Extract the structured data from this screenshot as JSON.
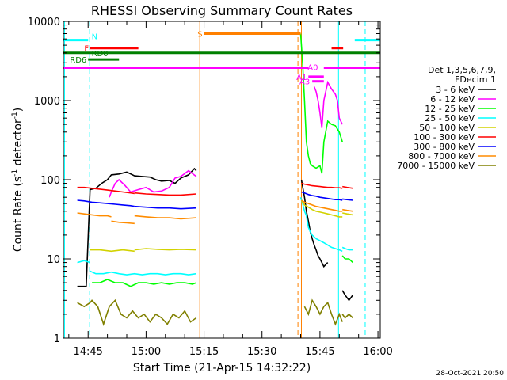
{
  "chart_data": {
    "type": "line",
    "title": "RHESSI Observing Summary Count Rates",
    "xlabel": "Start Time (21-Apr-15 14:32:22)",
    "ylabel_main": "Count Rate (s",
    "ylabel_sup1": "-1",
    "ylabel_mid": " detector",
    "ylabel_sup2": "-1",
    "ylabel_end": ")",
    "y_scale": "log",
    "ylim": [
      1,
      10000
    ],
    "xlim_minutes": [
      -6.4,
      75.6
    ],
    "x_ticks": [
      {
        "label": "14:45",
        "minute": 0
      },
      {
        "label": "15:00",
        "minute": 15
      },
      {
        "label": "15:15",
        "minute": 30
      },
      {
        "label": "15:30",
        "minute": 45
      },
      {
        "label": "15:45",
        "minute": 60
      },
      {
        "label": "16:00",
        "minute": 75
      }
    ],
    "y_ticks": [
      {
        "label": "1",
        "value": 1
      },
      {
        "label": "10",
        "value": 10
      },
      {
        "label": "100",
        "value": 100
      },
      {
        "label": "1000",
        "value": 1000
      },
      {
        "label": "10000",
        "value": 10000
      }
    ],
    "legend_header": [
      "Det 1,3,5,6,7,9,",
      "FDecim 1"
    ],
    "series": [
      {
        "name": "3 - 6 keV",
        "color": "#000000",
        "segments": [
          {
            "x": [
              -2.8,
              -2.0,
              -0.5,
              0.5,
              2.0,
              3.5,
              5.0,
              6.0,
              8.0,
              10.0,
              12.0,
              14.0,
              16.0,
              17.5,
              19.0,
              21.0,
              22.5,
              24.0,
              26.0,
              27.5,
              28.0
            ],
            "y": [
              4.5,
              4.5,
              4.5,
              75,
              78,
              90,
              100,
              115,
              118,
              125,
              112,
              110,
              108,
              100,
              96,
              98,
              90,
              105,
              115,
              138,
              130
            ]
          },
          {
            "x": [
              55.2,
              56.0,
              56.5,
              57.0,
              57.5,
              58.0,
              58.5,
              59.0,
              59.5,
              60.0,
              60.5,
              61.0,
              61.5,
              62.0
            ],
            "y": [
              100,
              60,
              40,
              30,
              22,
              18,
              15,
              13,
              11,
              10,
              9,
              8,
              8.5,
              9
            ]
          },
          {
            "x": [
              65.8,
              66.5,
              67.5,
              68.5
            ],
            "y": [
              4,
              3.5,
              3,
              3.5
            ]
          }
        ]
      },
      {
        "name": "6 - 12 keV",
        "color": "#ff00ff",
        "segments": [
          {
            "x": [
              5.5,
              6.0,
              7.0,
              8.0,
              9.5,
              11.0,
              13.0,
              15.0,
              17.0,
              19.0,
              21.0,
              22.5,
              24.0,
              26.0,
              28.0
            ],
            "y": [
              60,
              70,
              90,
              100,
              85,
              70,
              75,
              80,
              70,
              72,
              80,
              105,
              110,
              130,
              110
            ]
          },
          {
            "x": [
              58.5,
              59.0,
              59.5,
              60.0,
              60.5,
              61.0,
              62.0,
              63.0,
              64.0,
              64.5,
              65.0,
              65.8
            ],
            "y": [
              1500,
              1300,
              1000,
              700,
              450,
              1000,
              1700,
              1400,
              1200,
              1000,
              600,
              500
            ]
          }
        ]
      },
      {
        "name": "12 - 25 keV",
        "color": "#00ff00",
        "segments": [
          {
            "x": [
              1.0,
              3.0,
              5.0,
              7.0,
              9.0,
              11.0,
              13.0,
              15.0,
              17.0,
              19.0,
              21.0,
              23.0,
              25.0,
              27.0,
              28.0
            ],
            "y": [
              5,
              5,
              5.5,
              5,
              5,
              4.5,
              5,
              5,
              4.8,
              5,
              4.8,
              5,
              5,
              4.8,
              5
            ]
          },
          {
            "x": [
              55.0,
              55.5,
              56.0,
              56.5,
              57.0,
              57.5,
              58.0,
              59.0,
              60.0,
              60.5,
              61.0,
              62.0,
              63.0,
              64.0,
              65.0,
              65.8
            ],
            "y": [
              7000,
              3000,
              1000,
              300,
              200,
              160,
              150,
              140,
              150,
              120,
              300,
              550,
              500,
              480,
              400,
              300
            ]
          },
          {
            "x": [
              65.8,
              66.5,
              67.5,
              68.5
            ],
            "y": [
              11,
              10,
              10,
              9
            ]
          }
        ]
      },
      {
        "name": "25 - 50 keV",
        "color": "#00ffff",
        "segments": [
          {
            "x": [
              -2.8,
              -1.0,
              0.5
            ],
            "y": [
              9,
              9.5,
              9
            ]
          },
          {
            "x": [
              0.5,
              2.0,
              4.0,
              6.0,
              8.0,
              10.0,
              12.0,
              14.0,
              16.0,
              18.0,
              20.0,
              22.0,
              24.0,
              26.0,
              28.0
            ],
            "y": [
              7,
              6.5,
              6.5,
              6.8,
              6.5,
              6.3,
              6.5,
              6.3,
              6.5,
              6.5,
              6.3,
              6.5,
              6.5,
              6.3,
              6.5
            ]
          },
          {
            "x": [
              55.0,
              55.5,
              56.0,
              56.5,
              57.0,
              57.5,
              58.0,
              59.0,
              60.0,
              61.0,
              62.0,
              63.0,
              64.0,
              65.0,
              65.8
            ],
            "y": [
              60,
              50,
              40,
              35,
              25,
              22,
              20,
              18,
              17,
              16,
              15,
              14,
              13.5,
              13,
              12.5
            ]
          },
          {
            "x": [
              65.8,
              66.5,
              67.5,
              68.5
            ],
            "y": [
              14,
              13.5,
              13,
              13
            ]
          }
        ]
      },
      {
        "name": "50 - 100 keV",
        "color": "#d2d200",
        "segments": [
          {
            "x": [
              0.5,
              3.0,
              6.0,
              9.0,
              12.0
            ],
            "y": [
              13,
              13,
              12.5,
              13,
              12.5
            ]
          },
          {
            "x": [
              12.0,
              15.0,
              18.0,
              21.0,
              24.0,
              28.0
            ],
            "y": [
              13,
              13.5,
              13.2,
              13,
              13.2,
              13
            ]
          },
          {
            "x": [
              55.2,
              56.0,
              57.0,
              58.0,
              59.0,
              60.0,
              61.0,
              62.0,
              63.0,
              64.0,
              65.0,
              65.8
            ],
            "y": [
              55,
              48,
              45,
              42,
              40,
              39,
              38,
              37,
              36,
              35,
              34,
              34
            ]
          },
          {
            "x": [
              65.8,
              67.0,
              68.5
            ],
            "y": [
              38,
              37,
              36
            ]
          }
        ]
      },
      {
        "name": "100 - 300 keV",
        "color": "#ff0000",
        "segments": [
          {
            "x": [
              -2.8,
              -1.0,
              1.0,
              3.0,
              5.0,
              7.0,
              9.0,
              11.0,
              12.0
            ],
            "y": [
              80,
              80,
              78,
              76,
              74,
              72,
              70,
              68,
              67
            ]
          },
          {
            "x": [
              12.0,
              15.0,
              18.0,
              21.0,
              24.0,
              28.0
            ],
            "y": [
              68,
              66,
              65,
              64,
              64,
              66
            ]
          },
          {
            "x": [
              55.2,
              56.0,
              57.0,
              58.0,
              59.0,
              60.0,
              61.0,
              62.0,
              63.0,
              64.0,
              65.0,
              65.8
            ],
            "y": [
              90,
              88,
              86,
              84,
              83,
              82,
              81,
              80,
              80,
              79,
              79,
              78
            ]
          },
          {
            "x": [
              65.8,
              67.0,
              68.5
            ],
            "y": [
              82,
              80,
              78
            ]
          }
        ]
      },
      {
        "name": "300 - 800 keV",
        "color": "#0000ff",
        "segments": [
          {
            "x": [
              -2.8,
              -1.0,
              1.0,
              3.0,
              5.0,
              7.0,
              9.0,
              11.0,
              12.0
            ],
            "y": [
              55,
              54,
              52,
              51,
              50,
              49,
              48,
              47,
              46
            ]
          },
          {
            "x": [
              12.0,
              15.0,
              18.0,
              21.0,
              24.0,
              28.0
            ],
            "y": [
              46,
              45,
              44,
              44,
              43,
              44
            ]
          },
          {
            "x": [
              55.2,
              56.0,
              57.0,
              58.0,
              59.0,
              60.0,
              61.0,
              62.0,
              63.0,
              64.0,
              65.0,
              65.8
            ],
            "y": [
              70,
              68,
              65,
              63,
              62,
              60,
              59,
              58,
              57,
              56,
              56,
              55
            ]
          },
          {
            "x": [
              65.8,
              67.0,
              68.5
            ],
            "y": [
              57,
              56,
              55
            ]
          }
        ]
      },
      {
        "name": "800 - 7000 keV",
        "color": "#ff8c00",
        "segments": [
          {
            "x": [
              -2.8,
              -1.0,
              1.0,
              3.0,
              5.0,
              6.0
            ],
            "y": [
              38,
              37,
              36,
              35,
              35,
              34
            ]
          },
          {
            "x": [
              6.0,
              8.0,
              10.0,
              12.0
            ],
            "y": [
              30,
              29,
              28.5,
              28
            ]
          },
          {
            "x": [
              12.0,
              15.0,
              18.0,
              21.0,
              24.0,
              28.0
            ],
            "y": [
              35,
              34,
              33,
              33,
              32,
              33
            ]
          },
          {
            "x": [
              55.2,
              56.0,
              57.0,
              58.0,
              59.0,
              60.0,
              61.0,
              62.0,
              63.0,
              64.0,
              65.0,
              65.8
            ],
            "y": [
              55,
              52,
              50,
              48,
              46,
              45,
              44,
              43,
              42,
              41,
              40,
              40
            ]
          },
          {
            "x": [
              65.8,
              67.0,
              68.5
            ],
            "y": [
              42,
              41,
              40
            ]
          }
        ]
      },
      {
        "name": "7000 - 15000 keV",
        "color": "#808000",
        "segments": [
          {
            "x": [
              -2.8,
              -1.0,
              0.5,
              1.0,
              2.5,
              4.0,
              5.5,
              7.0,
              8.5,
              10.0,
              11.5,
              13.0,
              14.5,
              16.0,
              17.5,
              19.0,
              20.5,
              22.0,
              23.5,
              25.0,
              26.5,
              28.0
            ],
            "y": [
              2.8,
              2.5,
              2.8,
              3.0,
              2.5,
              1.5,
              2.5,
              3.0,
              2.0,
              1.8,
              2.2,
              1.8,
              2.0,
              1.6,
              2.0,
              1.8,
              1.5,
              2.0,
              1.8,
              2.2,
              1.6,
              1.8
            ]
          },
          {
            "x": [
              56.0,
              57.0,
              58.0,
              59.0,
              60.0,
              61.0,
              62.0,
              63.0,
              64.0,
              65.0,
              65.8
            ],
            "y": [
              2.5,
              2.0,
              3.0,
              2.5,
              2.0,
              2.5,
              2.8,
              2.0,
              1.5,
              2.0,
              1.6
            ]
          },
          {
            "x": [
              65.8,
              66.5,
              67.5,
              68.5
            ],
            "y": [
              2.0,
              1.8,
              2.0,
              1.8
            ]
          }
        ]
      }
    ],
    "flag_bars": [
      {
        "label": "N",
        "color": "#00ffff",
        "segments": [
          [
            -6.4,
            0.0
          ],
          [
            69.0,
            75.6
          ]
        ],
        "value": 5800
      },
      {
        "label": "F",
        "color": "#ff0000",
        "segments": [
          [
            0.5,
            13.0
          ],
          [
            63.0,
            66.0
          ]
        ],
        "value": 4600
      },
      {
        "label": "S",
        "color": "#ff8000",
        "segments": [
          [
            30.0,
            55.0
          ]
        ],
        "value": 7000
      },
      {
        "label": "RD0",
        "color": "#008000",
        "segments": [
          [
            -6.4,
            75.6
          ]
        ],
        "value": 4000
      },
      {
        "label": "RD6",
        "color": "#008000",
        "segments": [
          [
            0.0,
            8.0
          ]
        ],
        "value": 3300
      },
      {
        "label": "A0",
        "color": "#ff00ff",
        "segments": [
          [
            -6.4,
            57.0
          ],
          [
            61.0,
            75.6
          ]
        ],
        "value": 2600
      },
      {
        "label": "A1",
        "color": "#ff00ff",
        "segments": [
          [
            57.0,
            61.0
          ]
        ],
        "value": 2000
      },
      {
        "label": "A3",
        "color": "#ff00ff",
        "segments": [
          [
            58.0,
            61.0
          ]
        ],
        "value": 1750
      }
    ],
    "vertical_lines": [
      {
        "color": "#00ffff",
        "style": "solid",
        "minute": -6.1
      },
      {
        "color": "#00ffff",
        "style": "dashed",
        "minute": 0.4
      },
      {
        "color": "#ff8000",
        "style": "solid",
        "minute": 28.9
      },
      {
        "color": "#ff8000",
        "style": "dashed",
        "minute": 54.3
      },
      {
        "color": "#ff8000",
        "style": "solid",
        "minute": 55.2
      },
      {
        "color": "#00ffff",
        "style": "solid",
        "minute": 64.8
      },
      {
        "color": "#00ffff",
        "style": "dashed",
        "minute": 71.7
      }
    ],
    "timestamp": "28-Oct-2021 20:50"
  }
}
